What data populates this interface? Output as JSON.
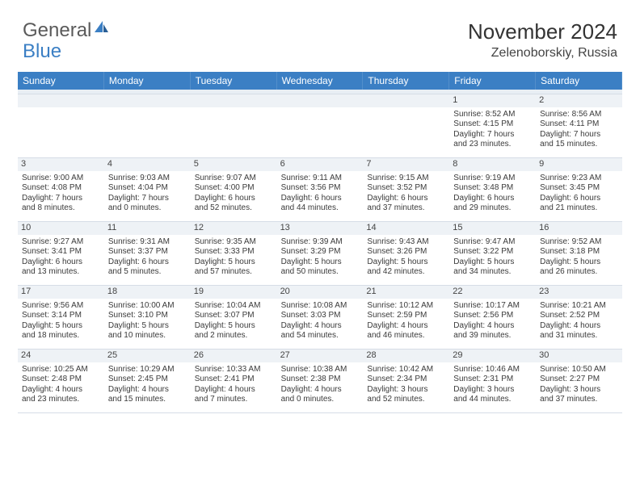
{
  "brand": {
    "word1": "General",
    "word2": "Blue"
  },
  "title": "November 2024",
  "location": "Zelenoborskiy, Russia",
  "colors": {
    "accent": "#3b7fc4",
    "text": "#3a3a3a",
    "headerText": "#ffffff",
    "dayNumBg": "#eef2f6",
    "border": "#d6dde6",
    "background": "#ffffff"
  },
  "typography": {
    "titleSize": 26,
    "locationSize": 16,
    "weekdaySize": 12,
    "bodySize": 10
  },
  "weekdays": [
    "Sunday",
    "Monday",
    "Tuesday",
    "Wednesday",
    "Thursday",
    "Friday",
    "Saturday"
  ],
  "weeks": [
    [
      null,
      null,
      null,
      null,
      null,
      {
        "n": "1",
        "sr": "Sunrise: 8:52 AM",
        "ss": "Sunset: 4:15 PM",
        "d1": "Daylight: 7 hours",
        "d2": "and 23 minutes."
      },
      {
        "n": "2",
        "sr": "Sunrise: 8:56 AM",
        "ss": "Sunset: 4:11 PM",
        "d1": "Daylight: 7 hours",
        "d2": "and 15 minutes."
      }
    ],
    [
      {
        "n": "3",
        "sr": "Sunrise: 9:00 AM",
        "ss": "Sunset: 4:08 PM",
        "d1": "Daylight: 7 hours",
        "d2": "and 8 minutes."
      },
      {
        "n": "4",
        "sr": "Sunrise: 9:03 AM",
        "ss": "Sunset: 4:04 PM",
        "d1": "Daylight: 7 hours",
        "d2": "and 0 minutes."
      },
      {
        "n": "5",
        "sr": "Sunrise: 9:07 AM",
        "ss": "Sunset: 4:00 PM",
        "d1": "Daylight: 6 hours",
        "d2": "and 52 minutes."
      },
      {
        "n": "6",
        "sr": "Sunrise: 9:11 AM",
        "ss": "Sunset: 3:56 PM",
        "d1": "Daylight: 6 hours",
        "d2": "and 44 minutes."
      },
      {
        "n": "7",
        "sr": "Sunrise: 9:15 AM",
        "ss": "Sunset: 3:52 PM",
        "d1": "Daylight: 6 hours",
        "d2": "and 37 minutes."
      },
      {
        "n": "8",
        "sr": "Sunrise: 9:19 AM",
        "ss": "Sunset: 3:48 PM",
        "d1": "Daylight: 6 hours",
        "d2": "and 29 minutes."
      },
      {
        "n": "9",
        "sr": "Sunrise: 9:23 AM",
        "ss": "Sunset: 3:45 PM",
        "d1": "Daylight: 6 hours",
        "d2": "and 21 minutes."
      }
    ],
    [
      {
        "n": "10",
        "sr": "Sunrise: 9:27 AM",
        "ss": "Sunset: 3:41 PM",
        "d1": "Daylight: 6 hours",
        "d2": "and 13 minutes."
      },
      {
        "n": "11",
        "sr": "Sunrise: 9:31 AM",
        "ss": "Sunset: 3:37 PM",
        "d1": "Daylight: 6 hours",
        "d2": "and 5 minutes."
      },
      {
        "n": "12",
        "sr": "Sunrise: 9:35 AM",
        "ss": "Sunset: 3:33 PM",
        "d1": "Daylight: 5 hours",
        "d2": "and 57 minutes."
      },
      {
        "n": "13",
        "sr": "Sunrise: 9:39 AM",
        "ss": "Sunset: 3:29 PM",
        "d1": "Daylight: 5 hours",
        "d2": "and 50 minutes."
      },
      {
        "n": "14",
        "sr": "Sunrise: 9:43 AM",
        "ss": "Sunset: 3:26 PM",
        "d1": "Daylight: 5 hours",
        "d2": "and 42 minutes."
      },
      {
        "n": "15",
        "sr": "Sunrise: 9:47 AM",
        "ss": "Sunset: 3:22 PM",
        "d1": "Daylight: 5 hours",
        "d2": "and 34 minutes."
      },
      {
        "n": "16",
        "sr": "Sunrise: 9:52 AM",
        "ss": "Sunset: 3:18 PM",
        "d1": "Daylight: 5 hours",
        "d2": "and 26 minutes."
      }
    ],
    [
      {
        "n": "17",
        "sr": "Sunrise: 9:56 AM",
        "ss": "Sunset: 3:14 PM",
        "d1": "Daylight: 5 hours",
        "d2": "and 18 minutes."
      },
      {
        "n": "18",
        "sr": "Sunrise: 10:00 AM",
        "ss": "Sunset: 3:10 PM",
        "d1": "Daylight: 5 hours",
        "d2": "and 10 minutes."
      },
      {
        "n": "19",
        "sr": "Sunrise: 10:04 AM",
        "ss": "Sunset: 3:07 PM",
        "d1": "Daylight: 5 hours",
        "d2": "and 2 minutes."
      },
      {
        "n": "20",
        "sr": "Sunrise: 10:08 AM",
        "ss": "Sunset: 3:03 PM",
        "d1": "Daylight: 4 hours",
        "d2": "and 54 minutes."
      },
      {
        "n": "21",
        "sr": "Sunrise: 10:12 AM",
        "ss": "Sunset: 2:59 PM",
        "d1": "Daylight: 4 hours",
        "d2": "and 46 minutes."
      },
      {
        "n": "22",
        "sr": "Sunrise: 10:17 AM",
        "ss": "Sunset: 2:56 PM",
        "d1": "Daylight: 4 hours",
        "d2": "and 39 minutes."
      },
      {
        "n": "23",
        "sr": "Sunrise: 10:21 AM",
        "ss": "Sunset: 2:52 PM",
        "d1": "Daylight: 4 hours",
        "d2": "and 31 minutes."
      }
    ],
    [
      {
        "n": "24",
        "sr": "Sunrise: 10:25 AM",
        "ss": "Sunset: 2:48 PM",
        "d1": "Daylight: 4 hours",
        "d2": "and 23 minutes."
      },
      {
        "n": "25",
        "sr": "Sunrise: 10:29 AM",
        "ss": "Sunset: 2:45 PM",
        "d1": "Daylight: 4 hours",
        "d2": "and 15 minutes."
      },
      {
        "n": "26",
        "sr": "Sunrise: 10:33 AM",
        "ss": "Sunset: 2:41 PM",
        "d1": "Daylight: 4 hours",
        "d2": "and 7 minutes."
      },
      {
        "n": "27",
        "sr": "Sunrise: 10:38 AM",
        "ss": "Sunset: 2:38 PM",
        "d1": "Daylight: 4 hours",
        "d2": "and 0 minutes."
      },
      {
        "n": "28",
        "sr": "Sunrise: 10:42 AM",
        "ss": "Sunset: 2:34 PM",
        "d1": "Daylight: 3 hours",
        "d2": "and 52 minutes."
      },
      {
        "n": "29",
        "sr": "Sunrise: 10:46 AM",
        "ss": "Sunset: 2:31 PM",
        "d1": "Daylight: 3 hours",
        "d2": "and 44 minutes."
      },
      {
        "n": "30",
        "sr": "Sunrise: 10:50 AM",
        "ss": "Sunset: 2:27 PM",
        "d1": "Daylight: 3 hours",
        "d2": "and 37 minutes."
      }
    ]
  ]
}
